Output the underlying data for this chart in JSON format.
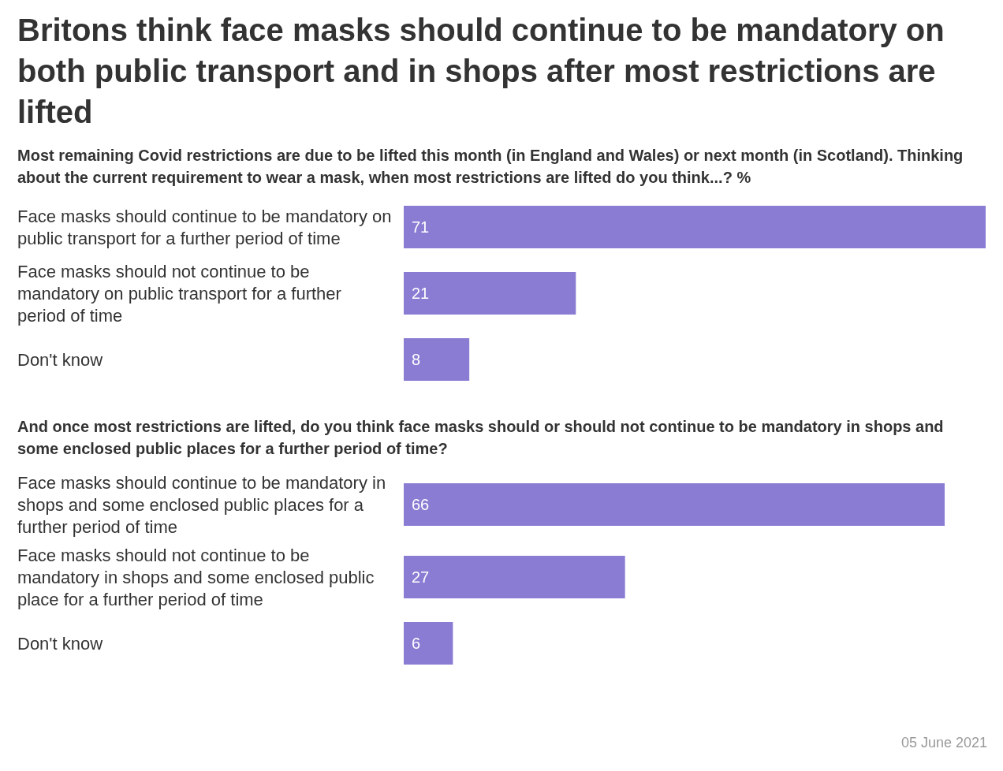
{
  "chart_data": [
    {
      "type": "bar",
      "orientation": "horizontal",
      "title": "Britons think face masks should continue to be mandatory on both public transport and in shops after most restrictions are lifted",
      "subtitle": "Most remaining Covid restrictions are due to be lifted this month (in England and Wales) or next month (in Scotland). Thinking about the current requirement to wear a mask, when most restrictions are lifted do you think...? %",
      "categories": [
        "Face masks should continue to be mandatory on public transport for a further period of time",
        "Face masks should not continue to be mandatory on public transport for a further period of time",
        "Don't know"
      ],
      "values": [
        71,
        21,
        8
      ],
      "color": "#8a7bd3",
      "data_labels": true
    },
    {
      "type": "bar",
      "orientation": "horizontal",
      "title": "And once most restrictions are lifted, do you think face masks should or should not continue to be mandatory in shops and some enclosed public places for a further period of time?",
      "categories": [
        "Face masks should continue to be mandatory in shops and some enclosed public places for a further period of time",
        "Face masks should not continue to be mandatory in shops and some enclosed public place for a further period of time",
        "Don't know"
      ],
      "values": [
        66,
        27,
        6
      ],
      "color": "#8a7bd3",
      "data_labels": true,
      "annotations": [
        "05 June 2021"
      ]
    }
  ]
}
